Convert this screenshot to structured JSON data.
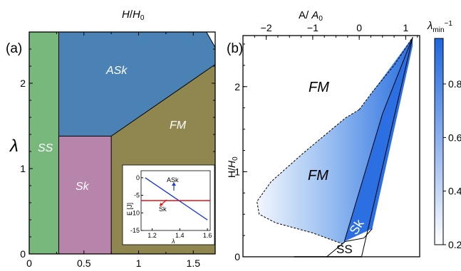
{
  "chart_data": [
    {
      "panel": "(a)",
      "type": "area",
      "xlabel": "",
      "ylabel": "λ",
      "top_label": "H/H₀",
      "xlim": [
        0,
        1.7
      ],
      "ylim": [
        0,
        2.6
      ],
      "x_ticks": [
        "0",
        "0.5",
        "1",
        "1.5"
      ],
      "y_ticks": [
        "0",
        "1",
        "2"
      ],
      "regions": [
        {
          "name": "SS",
          "color": "#78b87c"
        },
        {
          "name": "ASk",
          "color": "#4a82b6"
        },
        {
          "name": "Sk",
          "color": "#b784ac"
        },
        {
          "name": "FM",
          "color": "#8f8650"
        }
      ],
      "boundaries": {
        "ss_edge_h": 0.27,
        "sk_edge_h": 0.75,
        "sk_top_lambda": 1.38,
        "ask_fm_line": [
          [
            0.75,
            1.38
          ],
          [
            1.7,
            2.22
          ]
        ],
        "top_right_corner": [
          [
            1.62,
            2.6
          ],
          [
            1.7,
            2.42
          ]
        ]
      },
      "inset": {
        "xlabel": "λ",
        "ylabel": "E [J]",
        "xlim": [
          1.12,
          1.62
        ],
        "ylim": [
          -15,
          2
        ],
        "x_ticks": [
          "1.2",
          "1.4",
          "1.6"
        ],
        "y_ticks": [
          "0",
          "-5",
          "-10",
          "-15"
        ],
        "series": [
          {
            "name": "ASk",
            "color": "#1d3fd6",
            "x": [
              1.15,
              1.6
            ],
            "y": [
              0,
              -12
            ]
          },
          {
            "name": "Sk",
            "color": "#e01010",
            "x": [
              1.12,
              1.62
            ],
            "y": [
              -6.5,
              -6.5
            ]
          }
        ],
        "labels": [
          "ASk",
          "Sk"
        ]
      }
    },
    {
      "panel": "(b)",
      "type": "heatmap",
      "xlabel": "A/A₀",
      "ylabel": "H/H₀",
      "xlim": [
        -2.5,
        1.3
      ],
      "ylim": [
        0,
        2.6
      ],
      "x_ticks": [
        "−2",
        "−1",
        "0",
        "1"
      ],
      "y_ticks": [
        "0",
        "1",
        "2"
      ],
      "regions": [
        "FM",
        "FM",
        "Sk",
        "SS"
      ],
      "colorbar": {
        "label": "λ_min⁻¹",
        "ticks": [
          "0.2",
          "0.4",
          "0.6",
          "0.8"
        ],
        "range": [
          0.2,
          0.97
        ],
        "color_low": "#ffffff",
        "color_high": "#1f66de"
      },
      "boundaries": {
        "dashed_outline": [
          [
            0,
            1.73
          ],
          [
            -0.3,
            1.63
          ],
          [
            -1.2,
            1.22
          ],
          [
            -1.9,
            0.88
          ],
          [
            -2.2,
            0.65
          ],
          [
            -2.15,
            0.5
          ],
          [
            -1.8,
            0.4
          ],
          [
            -1.0,
            0.28
          ],
          [
            -0.35,
            0.15
          ]
        ],
        "sk_fm_line": [
          [
            -0.32,
            0.18
          ],
          [
            0.5,
            1.68
          ]
        ],
        "sk_ss_line": [
          [
            0.05,
            0.0
          ],
          [
            1.15,
            2.48
          ]
        ],
        "ss_top_curve": [
          [
            -0.7,
            0.0
          ],
          [
            -0.3,
            0.18
          ],
          [
            0.1,
            0.22
          ],
          [
            0.28,
            0.33
          ]
        ],
        "apex": [
          1.15,
          2.58
        ],
        "bottom_edge": [
          [
            -1.4,
            0
          ],
          [
            0.05,
            0
          ]
        ]
      }
    }
  ],
  "panels": {
    "a": {
      "label": "(a)",
      "top_label_var": "H",
      "top_label_sep": "/",
      "top_label_var2": "H",
      "top_label_sub": "0",
      "y_symbol": "λ",
      "region_ss": "SS",
      "region_ask": "ASk",
      "region_sk": "Sk",
      "region_fm": "FM",
      "inset_ylabel": "E [J]",
      "inset_xlabel": "λ",
      "inset_ask": "ASk",
      "inset_sk": "Sk"
    },
    "b": {
      "label": "(b)",
      "top_label_a": "A",
      "top_label_sep": "/ ",
      "top_label_a2": "A",
      "top_label_sub": "0",
      "ylabel_h": "H/",
      "ylabel_h2": "H",
      "ylabel_sub": "0",
      "fm_top": "FM",
      "fm_mid": "FM",
      "sk": "Sk",
      "ss": "SS",
      "cbar_label": "λ",
      "cbar_sub": "min",
      "cbar_sup": "−1"
    }
  }
}
